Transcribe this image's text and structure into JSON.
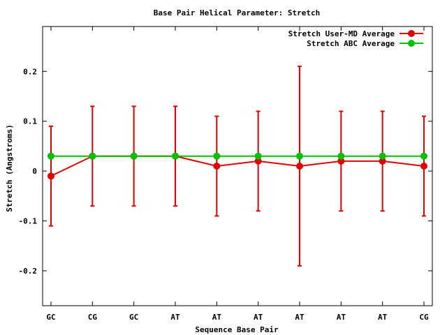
{
  "chart_data": {
    "type": "line",
    "title": "Base Pair Helical Parameter: Stretch",
    "xlabel": "Sequence Base Pair",
    "ylabel": "Stretch (Angstroms)",
    "categories": [
      "GC",
      "CG",
      "GC",
      "AT",
      "AT",
      "AT",
      "AT",
      "AT",
      "AT",
      "CG"
    ],
    "ylim": [
      -0.27,
      0.29
    ],
    "yticks": [
      -0.2,
      -0.1,
      0,
      0.1,
      0.2
    ],
    "ytick_labels": [
      "-0.2",
      "-0.1",
      "0",
      "0.1",
      "0.2"
    ],
    "legend_position": "top-right",
    "series": [
      {
        "name": "Stretch User-MD Average",
        "color": "#e00000",
        "values": [
          -0.01,
          0.03,
          0.03,
          0.03,
          0.01,
          0.02,
          0.01,
          0.02,
          0.02,
          0.01
        ],
        "error_low": [
          -0.11,
          -0.07,
          -0.07,
          -0.07,
          -0.09,
          -0.08,
          -0.19,
          -0.08,
          -0.08,
          -0.09
        ],
        "error_high": [
          0.09,
          0.13,
          0.13,
          0.13,
          0.11,
          0.12,
          0.21,
          0.12,
          0.12,
          0.11
        ]
      },
      {
        "name": "Stretch ABC Average",
        "color": "#00c000",
        "values": [
          0.03,
          0.03,
          0.03,
          0.03,
          0.03,
          0.03,
          0.03,
          0.03,
          0.03,
          0.03
        ]
      }
    ]
  }
}
